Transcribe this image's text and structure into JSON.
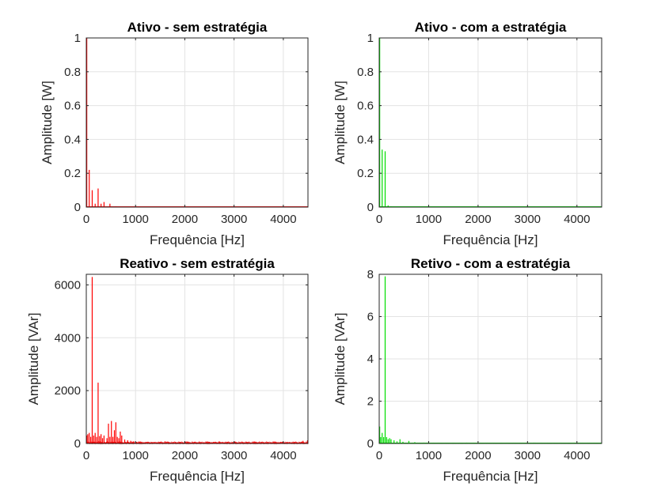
{
  "chart_data": [
    {
      "type": "line",
      "title": "Ativo - sem estratégia",
      "xlabel": "Frequência [Hz]",
      "ylabel": "Amplitude [W]",
      "xlim": [
        0,
        4500
      ],
      "ylim": [
        0,
        1
      ],
      "xticks": [
        0,
        1000,
        2000,
        3000,
        4000
      ],
      "yticks": [
        0,
        0.2,
        0.4,
        0.6,
        0.8,
        1
      ],
      "yticklabels": [
        "0",
        "0.2",
        "0.4",
        "0.6",
        "0.8",
        "1"
      ],
      "grid": true,
      "color": "#ff0000",
      "spikes": [
        [
          0,
          1
        ],
        [
          60,
          0.22
        ],
        [
          120,
          0.1
        ],
        [
          180,
          0.02
        ],
        [
          240,
          0.11
        ],
        [
          300,
          0.02
        ],
        [
          360,
          0.03
        ],
        [
          480,
          0.02
        ],
        [
          600,
          0.005
        ],
        [
          720,
          0.004
        ],
        [
          900,
          0.003
        ],
        [
          1200,
          0.003
        ],
        [
          1800,
          0.002
        ],
        [
          2400,
          0.002
        ],
        [
          3000,
          0.002
        ],
        [
          3600,
          0.002
        ],
        [
          4200,
          0.002
        ]
      ]
    },
    {
      "type": "line",
      "title": "Ativo - com a estratégia",
      "xlabel": "Frequência [Hz]",
      "ylabel": "Amplitude [W]",
      "xlim": [
        0,
        4500
      ],
      "ylim": [
        0,
        1
      ],
      "xticks": [
        0,
        1000,
        2000,
        3000,
        4000
      ],
      "yticks": [
        0,
        0.2,
        0.4,
        0.6,
        0.8,
        1
      ],
      "yticklabels": [
        "0",
        "0.2",
        "0.4",
        "0.6",
        "0.8",
        "1"
      ],
      "grid": true,
      "color": "#00dd00",
      "spikes": [
        [
          0,
          1
        ],
        [
          60,
          0.34
        ],
        [
          120,
          0.33
        ],
        [
          180,
          0.01
        ],
        [
          240,
          0.005
        ],
        [
          300,
          0.004
        ],
        [
          600,
          0.003
        ],
        [
          1200,
          0.002
        ],
        [
          2400,
          0.002
        ],
        [
          3600,
          0.002
        ]
      ]
    },
    {
      "type": "line",
      "title": "Reativo - sem estratégia",
      "xlabel": "Frequência [Hz]",
      "ylabel": "Amplitude [VAr]",
      "xlim": [
        0,
        4500
      ],
      "ylim": [
        0,
        6400
      ],
      "xticks": [
        0,
        1000,
        2000,
        3000,
        4000
      ],
      "yticks": [
        0,
        2000,
        4000,
        6000
      ],
      "yticklabels": [
        "0",
        "2000",
        "4000",
        "6000"
      ],
      "grid": true,
      "color": "#ff0000",
      "spikes": [
        [
          0,
          300
        ],
        [
          30,
          350
        ],
        [
          60,
          400
        ],
        [
          90,
          250
        ],
        [
          120,
          6300
        ],
        [
          150,
          300
        ],
        [
          180,
          400
        ],
        [
          210,
          250
        ],
        [
          240,
          2300
        ],
        [
          270,
          280
        ],
        [
          300,
          350
        ],
        [
          330,
          200
        ],
        [
          360,
          300
        ],
        [
          420,
          200
        ],
        [
          450,
          750
        ],
        [
          480,
          250
        ],
        [
          510,
          850
        ],
        [
          540,
          250
        ],
        [
          570,
          500
        ],
        [
          600,
          800
        ],
        [
          630,
          250
        ],
        [
          660,
          200
        ],
        [
          690,
          450
        ],
        [
          720,
          300
        ],
        [
          780,
          150
        ],
        [
          840,
          120
        ],
        [
          900,
          100
        ],
        [
          960,
          80
        ],
        [
          1020,
          60
        ],
        [
          1080,
          50
        ],
        [
          1200,
          40
        ],
        [
          1320,
          50
        ],
        [
          1500,
          40
        ],
        [
          1600,
          80
        ],
        [
          2000,
          70
        ],
        [
          2500,
          60
        ],
        [
          2700,
          80
        ],
        [
          3000,
          60
        ],
        [
          3500,
          50
        ],
        [
          4000,
          40
        ],
        [
          4400,
          100
        ],
        [
          4500,
          120
        ]
      ],
      "noise_floor": 60
    },
    {
      "type": "line",
      "title": "Retivo - com a estratégia",
      "xlabel": "Frequência [Hz]",
      "ylabel": "Amplitude [VAr]",
      "xlim": [
        0,
        4500
      ],
      "ylim": [
        0,
        8
      ],
      "xticks": [
        0,
        1000,
        2000,
        3000,
        4000
      ],
      "yticks": [
        0,
        2,
        4,
        6,
        8
      ],
      "yticklabels": [
        "0",
        "2",
        "4",
        "6",
        "8"
      ],
      "grid": true,
      "color": "#00dd00",
      "spikes": [
        [
          0,
          0.8
        ],
        [
          30,
          0.3
        ],
        [
          60,
          0.5
        ],
        [
          90,
          0.3
        ],
        [
          120,
          7.9
        ],
        [
          150,
          0.3
        ],
        [
          180,
          0.2
        ],
        [
          210,
          0.25
        ],
        [
          240,
          0.2
        ],
        [
          300,
          0.15
        ],
        [
          360,
          0.1
        ],
        [
          420,
          0.2
        ],
        [
          480,
          0.08
        ],
        [
          600,
          0.12
        ],
        [
          720,
          0.06
        ],
        [
          900,
          0.04
        ],
        [
          1200,
          0.03
        ],
        [
          1800,
          0.02
        ],
        [
          2400,
          0.02
        ],
        [
          3000,
          0.02
        ],
        [
          3600,
          0.02
        ],
        [
          4200,
          0.02
        ]
      ],
      "noise_floor": 0.02
    }
  ]
}
